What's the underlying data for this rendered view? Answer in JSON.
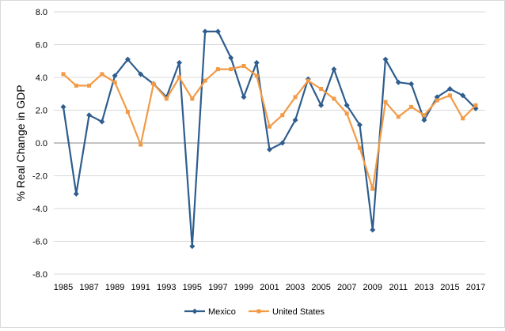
{
  "chart_data": {
    "type": "line",
    "title": "",
    "xlabel": "",
    "ylabel": "% Real Change in GDP",
    "ylim": [
      -8.0,
      8.0
    ],
    "ytick_step": 2.0,
    "grid": true,
    "legend_position": "bottom",
    "x": [
      1985,
      1986,
      1987,
      1988,
      1989,
      1990,
      1991,
      1992,
      1993,
      1994,
      1995,
      1996,
      1997,
      1998,
      1999,
      2000,
      2001,
      2002,
      2003,
      2004,
      2005,
      2006,
      2007,
      2008,
      2009,
      2010,
      2011,
      2012,
      2013,
      2014,
      2015,
      2016,
      2017
    ],
    "x_tick_labels": [
      "1985",
      "1987",
      "1989",
      "1991",
      "1993",
      "1995",
      "1997",
      "1999",
      "2001",
      "2003",
      "2005",
      "2007",
      "2009",
      "2011",
      "2013",
      "2015",
      "2017"
    ],
    "y_tick_labels": [
      "8.0",
      "6.0",
      "4.0",
      "2.0",
      "0.0",
      "-2.0",
      "-4.0",
      "-6.0",
      "-8.0"
    ],
    "series": [
      {
        "name": "Mexico",
        "color": "#2e5d8e",
        "marker": "diamond",
        "values": [
          2.2,
          -3.1,
          1.7,
          1.3,
          4.1,
          5.1,
          4.2,
          3.6,
          2.8,
          4.9,
          -6.3,
          6.8,
          6.8,
          5.2,
          2.8,
          4.9,
          -0.4,
          0.0,
          1.4,
          3.9,
          2.3,
          4.5,
          2.3,
          1.1,
          -5.3,
          5.1,
          3.7,
          3.6,
          1.4,
          2.8,
          3.3,
          2.9,
          2.1
        ]
      },
      {
        "name": "United States",
        "color": "#f39a45",
        "marker": "square",
        "values": [
          4.2,
          3.5,
          3.5,
          4.2,
          3.7,
          1.9,
          -0.1,
          3.6,
          2.7,
          4.0,
          2.7,
          3.8,
          4.5,
          4.5,
          4.7,
          4.1,
          1.0,
          1.7,
          2.8,
          3.8,
          3.3,
          2.7,
          1.8,
          -0.3,
          -2.8,
          2.5,
          1.6,
          2.2,
          1.7,
          2.6,
          2.9,
          1.5,
          2.3
        ]
      }
    ]
  }
}
